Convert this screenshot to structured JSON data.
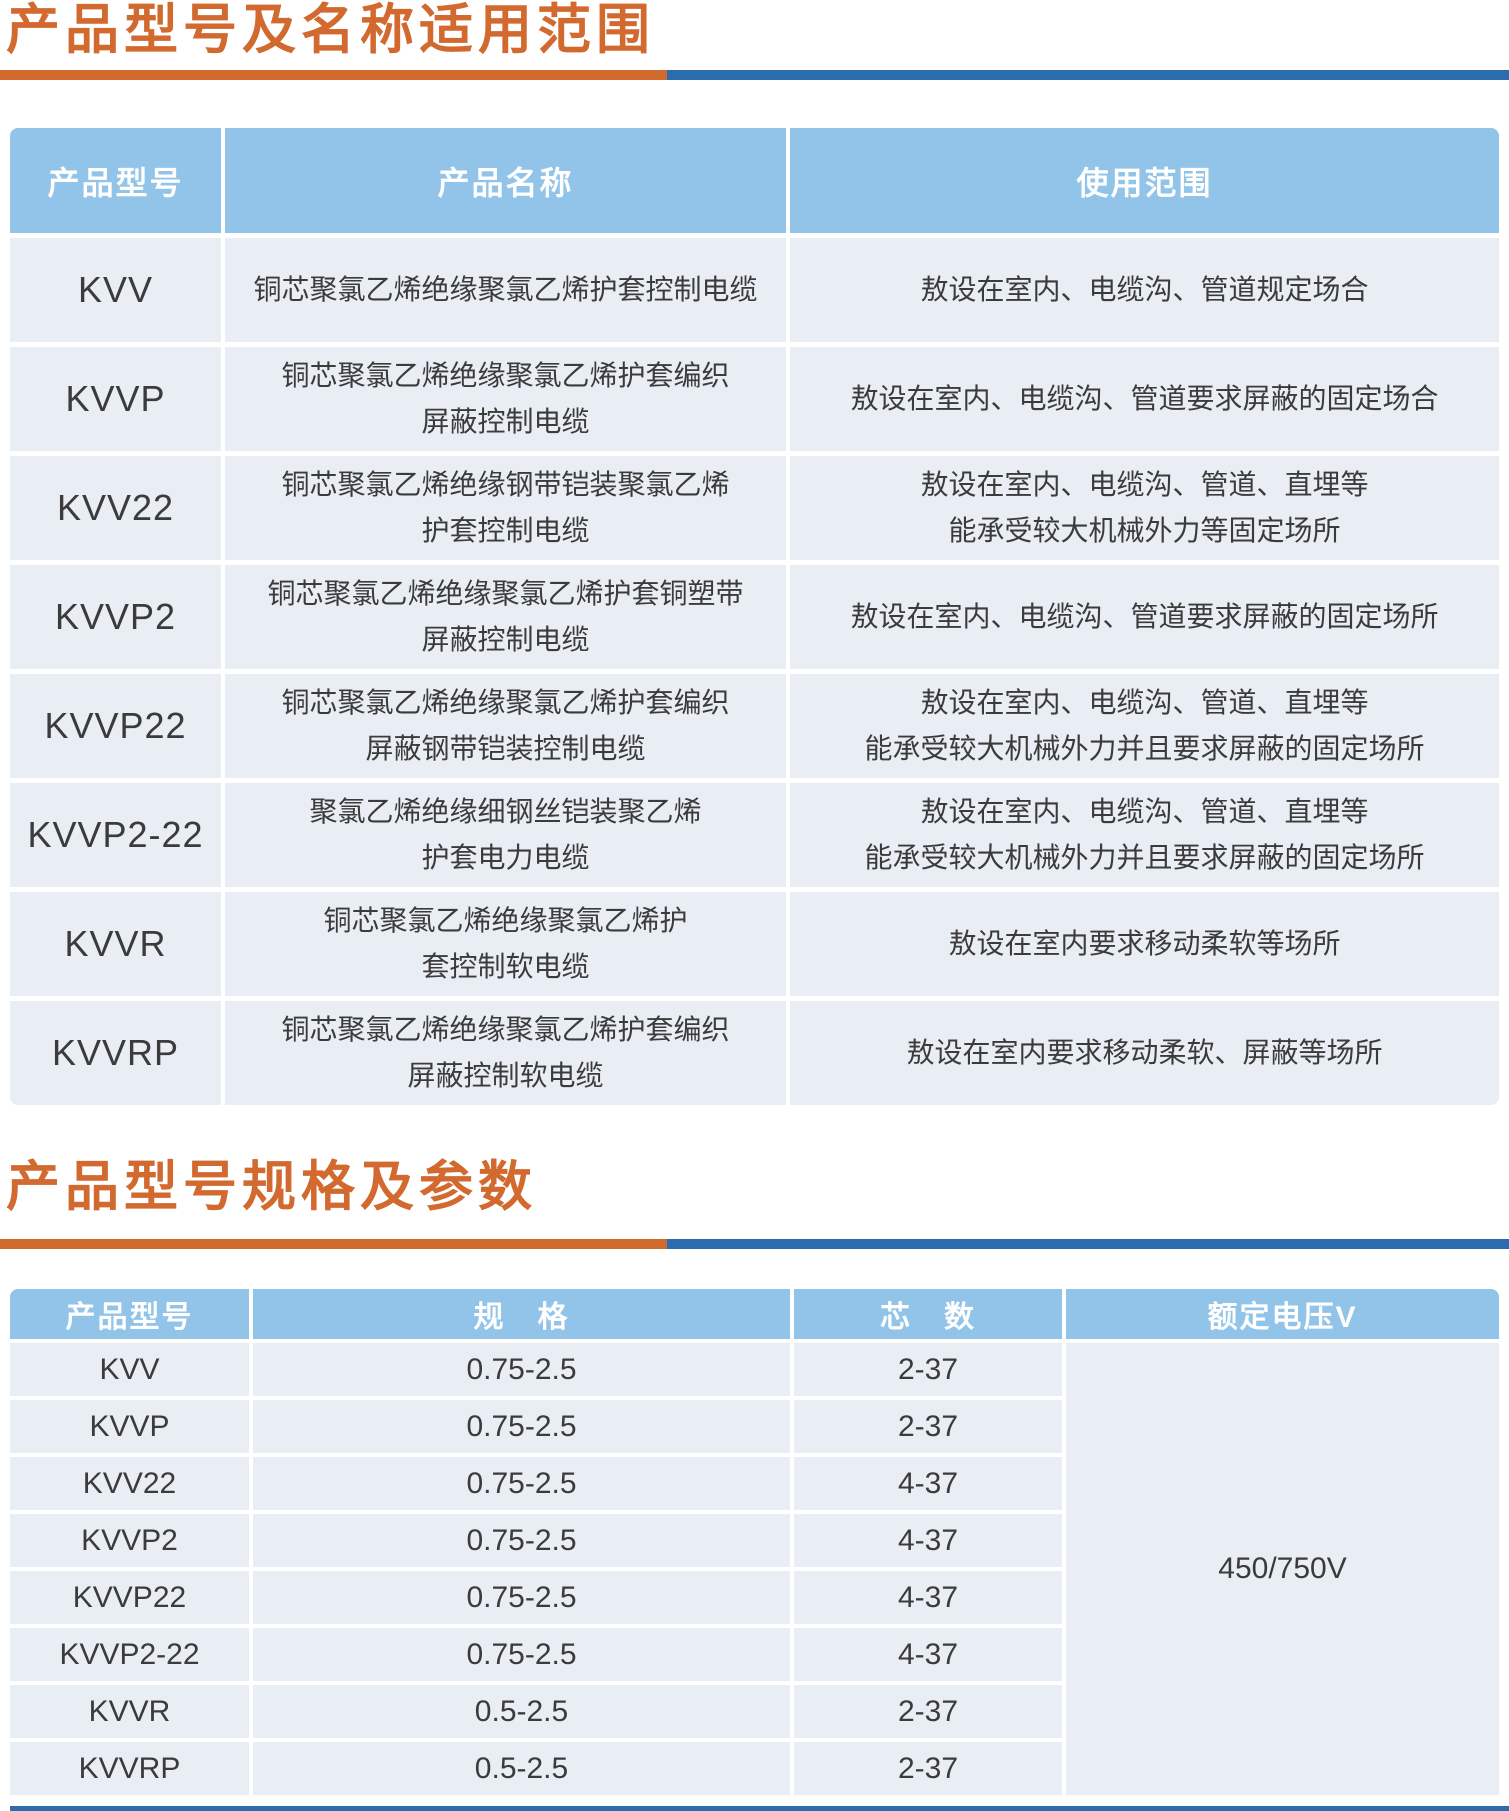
{
  "colors": {
    "accent_orange": "#D2692E",
    "accent_blue": "#2B6CAE",
    "table_header_blue": "#92C3E8",
    "cell_background": "#E9EDF4"
  },
  "section1": {
    "title": "产品型号及名称适用范围",
    "table": {
      "headers": {
        "model": "产品型号",
        "name": "产品名称",
        "usage": "使用范围"
      },
      "rows": [
        {
          "model": "KVV",
          "name": "铜芯聚氯乙烯绝缘聚氯乙烯护套控制电缆",
          "usage": "敖设在室内、电缆沟、管道规定场合"
        },
        {
          "model": "KVVP",
          "name": "铜芯聚氯乙烯绝缘聚氯乙烯护套编织\n屏蔽控制电缆",
          "usage": "敖设在室内、电缆沟、管道要求屏蔽的固定场合"
        },
        {
          "model": "KVV22",
          "name": "铜芯聚氯乙烯绝缘钢带铠装聚氯乙烯\n护套控制电缆",
          "usage": "敖设在室内、电缆沟、管道、直埋等\n能承受较大机械外力等固定场所"
        },
        {
          "model": "KVVP2",
          "name": "铜芯聚氯乙烯绝缘聚氯乙烯护套铜塑带\n屏蔽控制电缆",
          "usage": "敖设在室内、电缆沟、管道要求屏蔽的固定场所"
        },
        {
          "model": "KVVP22",
          "name": "铜芯聚氯乙烯绝缘聚氯乙烯护套编织\n屏蔽钢带铠装控制电缆",
          "usage": "敖设在室内、电缆沟、管道、直埋等\n能承受较大机械外力并且要求屏蔽的固定场所"
        },
        {
          "model": "KVVP2-22",
          "name": "聚氯乙烯绝缘细钢丝铠装聚乙烯\n护套电力电缆",
          "usage": "敖设在室内、电缆沟、管道、直埋等\n能承受较大机械外力并且要求屏蔽的固定场所"
        },
        {
          "model": "KVVR",
          "name": "铜芯聚氯乙烯绝缘聚氯乙烯护\n套控制软电缆",
          "usage": "敖设在室内要求移动柔软等场所"
        },
        {
          "model": "KVVRP",
          "name": "铜芯聚氯乙烯绝缘聚氯乙烯护套编织\n屏蔽控制软电缆",
          "usage": "敖设在室内要求移动柔软、屏蔽等场所"
        }
      ]
    }
  },
  "section2": {
    "title": "产品型号规格及参数",
    "table": {
      "headers": {
        "model": "产品型号",
        "spec": "规　格",
        "cores": "芯　数",
        "voltage": "额定电压V"
      },
      "rows": [
        {
          "model": "KVV",
          "spec": "0.75-2.5",
          "cores": "2-37"
        },
        {
          "model": "KVVP",
          "spec": "0.75-2.5",
          "cores": "2-37"
        },
        {
          "model": "KVV22",
          "spec": "0.75-2.5",
          "cores": "4-37"
        },
        {
          "model": "KVVP2",
          "spec": "0.75-2.5",
          "cores": "4-37"
        },
        {
          "model": "KVVP22",
          "spec": "0.75-2.5",
          "cores": "4-37"
        },
        {
          "model": "KVVP2-22",
          "spec": "0.75-2.5",
          "cores": "4-37"
        },
        {
          "model": "KVVR",
          "spec": "0.5-2.5",
          "cores": "2-37"
        },
        {
          "model": "KVVRP",
          "spec": "0.5-2.5",
          "cores": "2-37"
        }
      ],
      "voltage_value": "450/750V"
    }
  }
}
